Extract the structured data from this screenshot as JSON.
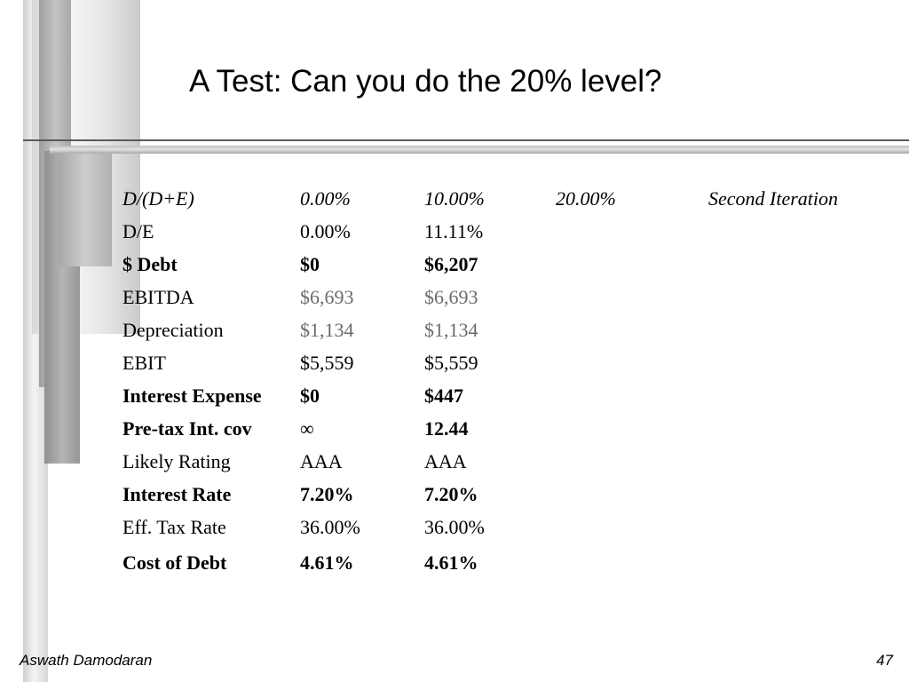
{
  "slide": {
    "title": "A Test: Can you do the 20% level?",
    "footer_author": "Aswath Damodaran",
    "page_number": "47"
  },
  "table": {
    "header": [
      "D/(D+E)",
      "0.00%",
      "10.00%",
      "20.00%",
      "Second Iteration"
    ],
    "rows": [
      [
        "D/E",
        "0.00%",
        "11.11%",
        "",
        ""
      ],
      [
        "$ Debt",
        "$0",
        "$6,207",
        "",
        ""
      ],
      [
        "EBITDA",
        "$6,693",
        "$6,693",
        "",
        ""
      ],
      [
        "Depreciation",
        "$1,134",
        "$1,134",
        "",
        ""
      ],
      [
        "EBIT",
        "$5,559",
        "$5,559",
        "",
        ""
      ],
      [
        "Interest Expense",
        "$0",
        "$447",
        "",
        ""
      ],
      [
        "Pre-tax Int. cov",
        "∞",
        "12.44",
        "",
        ""
      ],
      [
        "Likely Rating",
        "AAA",
        "AAA",
        "",
        ""
      ],
      [
        "Interest Rate",
        "7.20%",
        "7.20%",
        "",
        ""
      ],
      [
        "Eff. Tax Rate",
        "36.00%",
        "36.00%",
        "",
        ""
      ],
      [
        "Cost of Debt",
        "4.61%",
        "4.61%",
        "",
        ""
      ]
    ]
  },
  "colors": {
    "text": "#000000",
    "input_value_gray": "#6b6b6b",
    "rule": "#5a5a5a"
  }
}
